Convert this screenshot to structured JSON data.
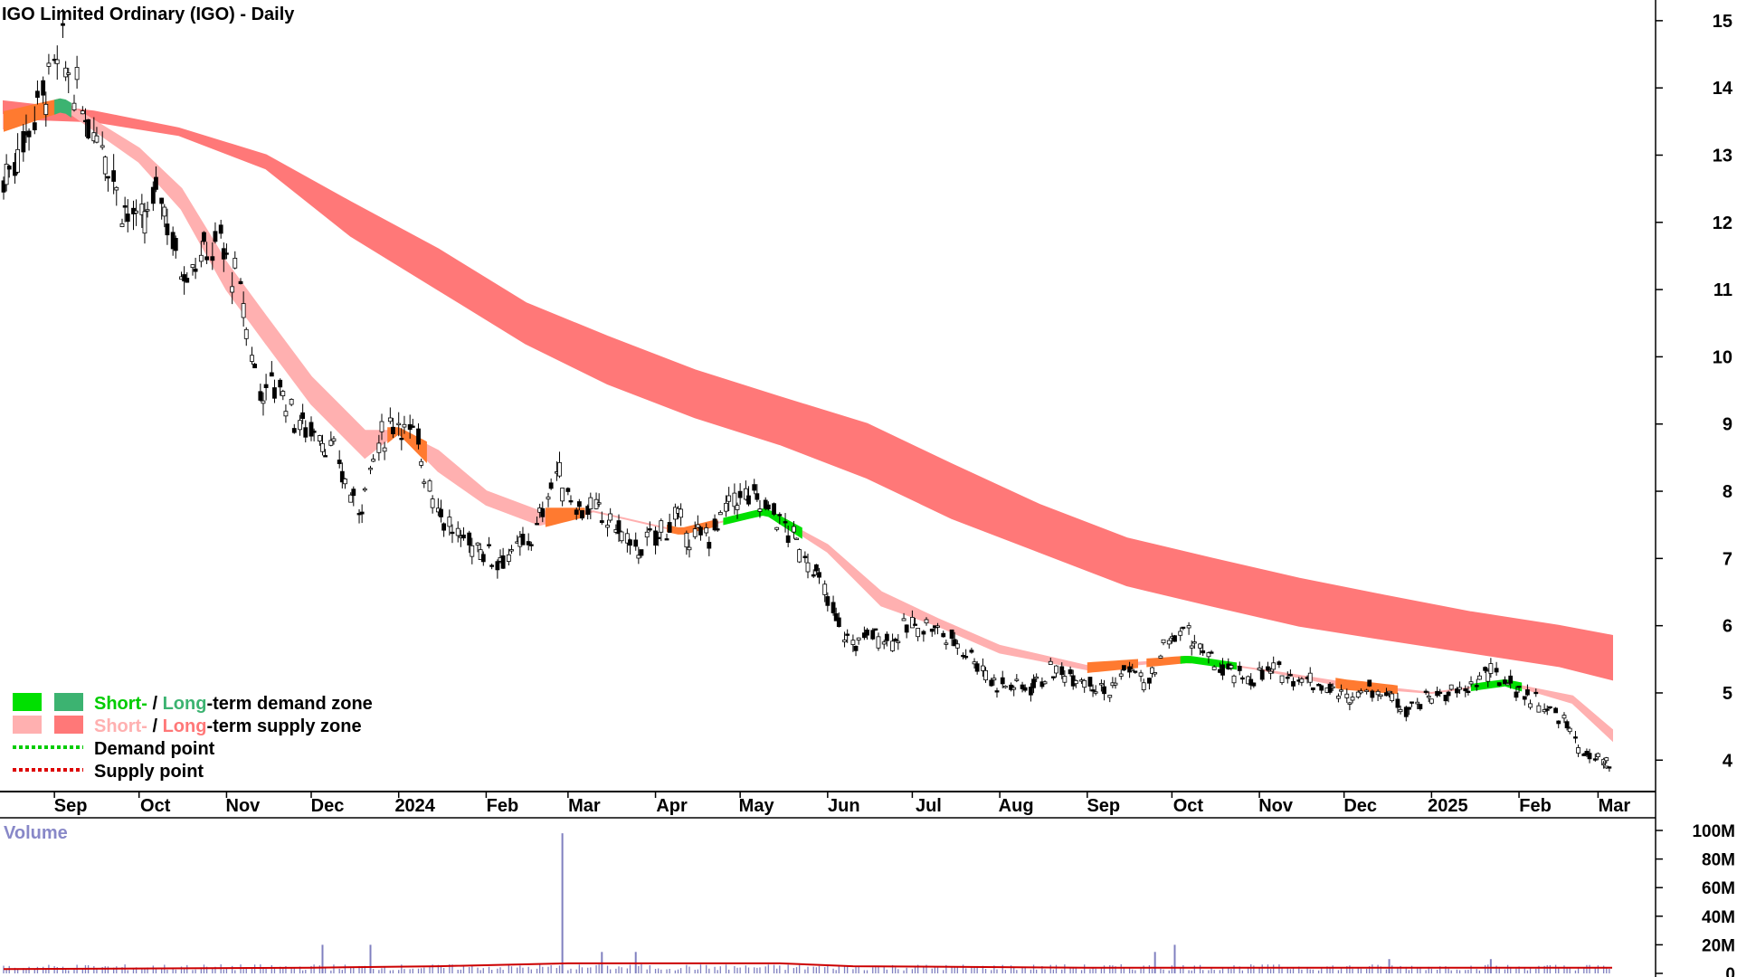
{
  "title": "IGO Limited Ordinary (IGO) - Daily",
  "volume_title": "Volume",
  "legend": {
    "demand_short": "Short-",
    "demand_sep": " / ",
    "demand_long": "Long",
    "demand_rest": "-term demand zone",
    "supply_short": "Short-",
    "supply_sep": " / ",
    "supply_long": "Long",
    "supply_rest": "-term supply zone",
    "demand_point": "Demand point",
    "supply_point": "Supply point"
  },
  "colors": {
    "short_demand": "#00e000",
    "long_demand": "#3cb371",
    "short_supply": "#ffb0b0",
    "long_supply": "#ff7878",
    "mixed_zone": "#ff7a30",
    "demand_point": "#00cc00",
    "supply_point": "#dd0000",
    "volume_bar": "#8080c0",
    "volume_avg": "#cc0000"
  },
  "chart_data": {
    "type": "candlestick",
    "y_ticks": [
      "15",
      "14",
      "13",
      "12",
      "11",
      "10",
      "9",
      "8",
      "7",
      "6",
      "5",
      "4"
    ],
    "y_tick_values": [
      15,
      14,
      13,
      12,
      11,
      10,
      9,
      8,
      7,
      6,
      5,
      4
    ],
    "ylim": [
      3.6,
      15.2
    ],
    "x_ticks": [
      "Sep",
      "Oct",
      "Nov",
      "Dec",
      "2024",
      "Feb",
      "Mar",
      "Apr",
      "May",
      "Jun",
      "Jul",
      "Aug",
      "Sep",
      "Oct",
      "Nov",
      "Dec",
      "2025",
      "Feb",
      "Mar"
    ],
    "x_tick_dates": [
      "2023-09-01",
      "2023-10-01",
      "2023-11-01",
      "2023-12-01",
      "2024-01-01",
      "2024-02-01",
      "2024-03-01",
      "2024-04-01",
      "2024-05-01",
      "2024-06-01",
      "2024-07-01",
      "2024-08-01",
      "2024-09-01",
      "2024-10-01",
      "2024-11-01",
      "2024-12-01",
      "2025-01-01",
      "2025-02-01",
      "2025-03-01"
    ],
    "x_range": [
      "2023-08-14",
      "2025-03-06"
    ],
    "price_close": [
      [
        "2023-08-14",
        12.6
      ],
      [
        "2023-08-21",
        13.2
      ],
      [
        "2023-08-28",
        13.9
      ],
      [
        "2023-09-04",
        14.5
      ],
      [
        "2023-09-11",
        13.7
      ],
      [
        "2023-09-18",
        13.3
      ],
      [
        "2023-09-25",
        12.3
      ],
      [
        "2023-10-02",
        11.9
      ],
      [
        "2023-10-09",
        12.5
      ],
      [
        "2023-10-16",
        11.3
      ],
      [
        "2023-10-23",
        11.5
      ],
      [
        "2023-10-30",
        11.7
      ],
      [
        "2023-11-06",
        11.0
      ],
      [
        "2023-11-13",
        9.5
      ],
      [
        "2023-11-20",
        9.6
      ],
      [
        "2023-11-27",
        9.0
      ],
      [
        "2023-12-04",
        8.9
      ],
      [
        "2023-12-11",
        8.4
      ],
      [
        "2023-12-18",
        7.7
      ],
      [
        "2023-12-25",
        8.7
      ],
      [
        "2024-01-01",
        9.1
      ],
      [
        "2024-01-08",
        8.7
      ],
      [
        "2024-01-15",
        7.8
      ],
      [
        "2024-01-22",
        7.3
      ],
      [
        "2024-01-29",
        7.2
      ],
      [
        "2024-02-05",
        7.0
      ],
      [
        "2024-02-12",
        7.1
      ],
      [
        "2024-02-19",
        7.4
      ],
      [
        "2024-02-26",
        8.3
      ],
      [
        "2024-03-04",
        7.8
      ],
      [
        "2024-03-11",
        7.7
      ],
      [
        "2024-03-18",
        7.5
      ],
      [
        "2024-03-25",
        7.1
      ],
      [
        "2024-04-01",
        7.3
      ],
      [
        "2024-04-08",
        7.6
      ],
      [
        "2024-04-15",
        7.3
      ],
      [
        "2024-04-22",
        7.4
      ],
      [
        "2024-04-29",
        7.9
      ],
      [
        "2024-05-06",
        7.9
      ],
      [
        "2024-05-13",
        7.7
      ],
      [
        "2024-05-20",
        7.3
      ],
      [
        "2024-05-27",
        6.9
      ],
      [
        "2024-06-03",
        6.2
      ],
      [
        "2024-06-10",
        5.7
      ],
      [
        "2024-06-17",
        5.9
      ],
      [
        "2024-06-24",
        5.8
      ],
      [
        "2024-07-01",
        6.0
      ],
      [
        "2024-07-08",
        6.0
      ],
      [
        "2024-07-15",
        5.8
      ],
      [
        "2024-07-22",
        5.6
      ],
      [
        "2024-07-29",
        5.2
      ],
      [
        "2024-08-05",
        5.1
      ],
      [
        "2024-08-12",
        5.1
      ],
      [
        "2024-08-19",
        5.3
      ],
      [
        "2024-08-26",
        5.3
      ],
      [
        "2024-09-02",
        5.2
      ],
      [
        "2024-09-09",
        5.0
      ],
      [
        "2024-09-16",
        5.4
      ],
      [
        "2024-09-23",
        5.1
      ],
      [
        "2024-09-30",
        5.8
      ],
      [
        "2024-10-07",
        5.9
      ],
      [
        "2024-10-14",
        5.5
      ],
      [
        "2024-10-21",
        5.3
      ],
      [
        "2024-10-28",
        5.2
      ],
      [
        "2024-11-04",
        5.3
      ],
      [
        "2024-11-11",
        5.3
      ],
      [
        "2024-11-18",
        5.2
      ],
      [
        "2024-11-25",
        5.1
      ],
      [
        "2024-12-02",
        4.9
      ],
      [
        "2024-12-09",
        5.1
      ],
      [
        "2024-12-16",
        5.0
      ],
      [
        "2024-12-23",
        4.8
      ],
      [
        "2024-12-30",
        4.9
      ],
      [
        "2025-01-06",
        5.0
      ],
      [
        "2025-01-13",
        5.0
      ],
      [
        "2025-01-20",
        5.3
      ],
      [
        "2025-01-27",
        5.2
      ],
      [
        "2025-02-03",
        5.0
      ],
      [
        "2025-02-10",
        4.8
      ],
      [
        "2025-02-17",
        4.6
      ],
      [
        "2025-02-24",
        4.1
      ],
      [
        "2025-03-03",
        3.95
      ],
      [
        "2025-03-06",
        3.85
      ]
    ],
    "short_term_band": [
      [
        "2023-08-14",
        13.4,
        13.6
      ],
      [
        "2023-09-04",
        13.7,
        13.8
      ],
      [
        "2023-10-01",
        12.9,
        13.1
      ],
      [
        "2023-10-16",
        12.2,
        12.5
      ],
      [
        "2023-11-01",
        11.0,
        11.4
      ],
      [
        "2023-11-15",
        10.2,
        10.6
      ],
      [
        "2023-12-01",
        9.3,
        9.7
      ],
      [
        "2023-12-20",
        8.5,
        8.9
      ],
      [
        "2024-01-01",
        8.9,
        8.9
      ],
      [
        "2024-01-15",
        8.3,
        8.6
      ],
      [
        "2024-02-01",
        7.8,
        8.0
      ],
      [
        "2024-02-20",
        7.5,
        7.7
      ],
      [
        "2024-03-10",
        7.7,
        7.7
      ],
      [
        "2024-04-10",
        7.4,
        7.4
      ],
      [
        "2024-05-10",
        7.7,
        7.7
      ],
      [
        "2024-06-01",
        7.1,
        7.2
      ],
      [
        "2024-06-20",
        6.3,
        6.5
      ],
      [
        "2024-07-10",
        6.0,
        6.1
      ],
      [
        "2024-08-01",
        5.6,
        5.7
      ],
      [
        "2024-09-01",
        5.35,
        5.4
      ],
      [
        "2024-10-07",
        5.5,
        5.5
      ],
      [
        "2024-11-01",
        5.35,
        5.35
      ],
      [
        "2024-12-01",
        5.1,
        5.15
      ],
      [
        "2025-01-01",
        5.0,
        5.0
      ],
      [
        "2025-01-27",
        5.15,
        5.15
      ],
      [
        "2025-02-20",
        4.85,
        4.95
      ],
      [
        "2025-03-06",
        4.3,
        4.45
      ]
    ],
    "long_term_band": [
      [
        "2023-08-14",
        13.55,
        13.8
      ],
      [
        "2023-09-15",
        13.5,
        13.65
      ],
      [
        "2023-10-15",
        13.3,
        13.4
      ],
      [
        "2023-11-15",
        12.8,
        13.0
      ],
      [
        "2023-12-15",
        11.8,
        12.3
      ],
      [
        "2024-01-15",
        11.0,
        11.6
      ],
      [
        "2024-02-15",
        10.2,
        10.8
      ],
      [
        "2024-03-15",
        9.6,
        10.3
      ],
      [
        "2024-04-15",
        9.1,
        9.8
      ],
      [
        "2024-05-15",
        8.7,
        9.4
      ],
      [
        "2024-06-15",
        8.2,
        9.0
      ],
      [
        "2024-07-15",
        7.6,
        8.4
      ],
      [
        "2024-08-15",
        7.1,
        7.8
      ],
      [
        "2024-09-15",
        6.6,
        7.3
      ],
      [
        "2024-10-15",
        6.3,
        7.0
      ],
      [
        "2024-11-15",
        6.0,
        6.7
      ],
      [
        "2024-12-15",
        5.8,
        6.45
      ],
      [
        "2025-01-15",
        5.6,
        6.2
      ],
      [
        "2025-02-15",
        5.4,
        6.0
      ],
      [
        "2025-03-06",
        5.2,
        5.85
      ]
    ],
    "volume": {
      "y_ticks": [
        "100M",
        "80M",
        "60M",
        "40M",
        "20M",
        "0"
      ],
      "y_tick_values": [
        100,
        80,
        60,
        40,
        20,
        0
      ],
      "unit": "M",
      "spikes": [
        [
          "2023-12-05",
          20
        ],
        [
          "2023-12-22",
          20
        ],
        [
          "2024-02-28",
          98
        ],
        [
          "2024-03-13",
          15
        ],
        [
          "2024-03-25",
          15
        ],
        [
          "2024-09-25",
          15
        ],
        [
          "2024-10-02",
          20
        ],
        [
          "2024-12-17",
          10
        ],
        [
          "2025-01-22",
          10
        ]
      ],
      "baseline": 4,
      "avg_line": [
        [
          "2023-08-14",
          3
        ],
        [
          "2023-12-01",
          4
        ],
        [
          "2024-01-15",
          5
        ],
        [
          "2024-03-01",
          7
        ],
        [
          "2024-05-15",
          7
        ],
        [
          "2024-06-10",
          5
        ],
        [
          "2024-09-01",
          4
        ],
        [
          "2025-03-06",
          4
        ]
      ]
    }
  }
}
